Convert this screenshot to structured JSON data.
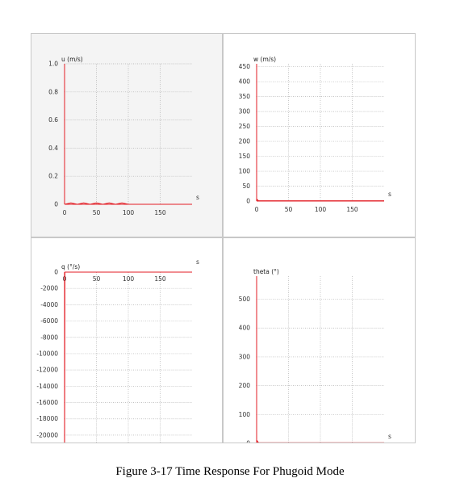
{
  "caption": "Figure 3-17 Time Response For Phugoid Mode",
  "colors": {
    "series": "#e31b23",
    "grid": "#b0b0b0",
    "axis": "#888888"
  },
  "chart_data": [
    {
      "type": "line",
      "title": "u (m/s)",
      "xlabel": "s",
      "ylabel": "",
      "xlim": [
        0,
        200
      ],
      "ylim": [
        0,
        1.0
      ],
      "x_ticks": [
        "0",
        "50",
        "100",
        "150"
      ],
      "x_tick_values": [
        0,
        50,
        100,
        150
      ],
      "y_ticks": [
        "0",
        "0.2",
        "0.4",
        "0.6",
        "0.8",
        "1.0"
      ],
      "y_tick_values": [
        0,
        0.2,
        0.4,
        0.6,
        0.8,
        1.0
      ],
      "x_axis_at": 0,
      "grid": true,
      "series": [
        {
          "x": [
            0,
            10,
            20,
            30,
            40,
            50,
            60,
            70,
            80,
            90,
            100,
            110,
            120,
            130,
            140,
            150,
            160,
            170,
            180,
            190,
            200
          ],
          "y": [
            0,
            0.01,
            0.0,
            0.01,
            0.0,
            0.01,
            0.0,
            0.01,
            0.0,
            0.01,
            0.0,
            0.0,
            0.0,
            0.0,
            0.0,
            0.0,
            0.0,
            0.0,
            0.0,
            0.0,
            0.0
          ]
        }
      ]
    },
    {
      "type": "line",
      "title": "w (m/s)",
      "xlabel": "s",
      "ylabel": "",
      "xlim": [
        0,
        200
      ],
      "ylim": [
        0,
        460
      ],
      "x_ticks": [
        "0",
        "50",
        "100",
        "150"
      ],
      "x_tick_values": [
        0,
        50,
        100,
        150
      ],
      "y_ticks": [
        "0",
        "50",
        "100",
        "150",
        "200",
        "250",
        "300",
        "350",
        "400",
        "450"
      ],
      "y_tick_values": [
        0,
        50,
        100,
        150,
        200,
        250,
        300,
        350,
        400,
        450
      ],
      "x_axis_at": 0,
      "grid": true,
      "series": [
        {
          "x": [
            0,
            1,
            3,
            200
          ],
          "y": [
            0,
            5,
            1,
            1
          ]
        }
      ]
    },
    {
      "type": "line",
      "title": "q (°/s)",
      "xlabel": "s",
      "ylabel": "",
      "xlim": [
        0,
        200
      ],
      "ylim": [
        -21000,
        0
      ],
      "x_ticks": [
        "0",
        "50",
        "100",
        "150"
      ],
      "x_tick_values": [
        0,
        50,
        100,
        150
      ],
      "y_ticks": [
        "0",
        "-2000",
        "-4000",
        "-6000",
        "-8000",
        "-10000",
        "-12000",
        "-14000",
        "-16000",
        "-18000",
        "-20000"
      ],
      "y_tick_values": [
        0,
        -2000,
        -4000,
        -6000,
        -8000,
        -10000,
        -12000,
        -14000,
        -16000,
        -18000,
        -20000
      ],
      "x_axis_at": 0,
      "grid": true,
      "series": [
        {
          "x": [
            0,
            0.5,
            200
          ],
          "y": [
            -21000,
            0,
            0
          ]
        }
      ]
    },
    {
      "type": "line",
      "title": "theta (°)",
      "xlabel": "s",
      "ylabel": "",
      "xlim": [
        0,
        200
      ],
      "ylim": [
        0,
        580
      ],
      "x_ticks": [
        "0",
        "50",
        "100",
        "150"
      ],
      "x_tick_values": [
        0,
        50,
        100,
        150
      ],
      "y_ticks": [
        "0",
        "100",
        "200",
        "300",
        "400",
        "500"
      ],
      "y_tick_values": [
        0,
        100,
        200,
        300,
        400,
        500
      ],
      "x_axis_at": 0,
      "grid": true,
      "series": [
        {
          "x": [
            0,
            1,
            3,
            200
          ],
          "y": [
            0,
            8,
            2,
            2
          ]
        }
      ]
    }
  ]
}
